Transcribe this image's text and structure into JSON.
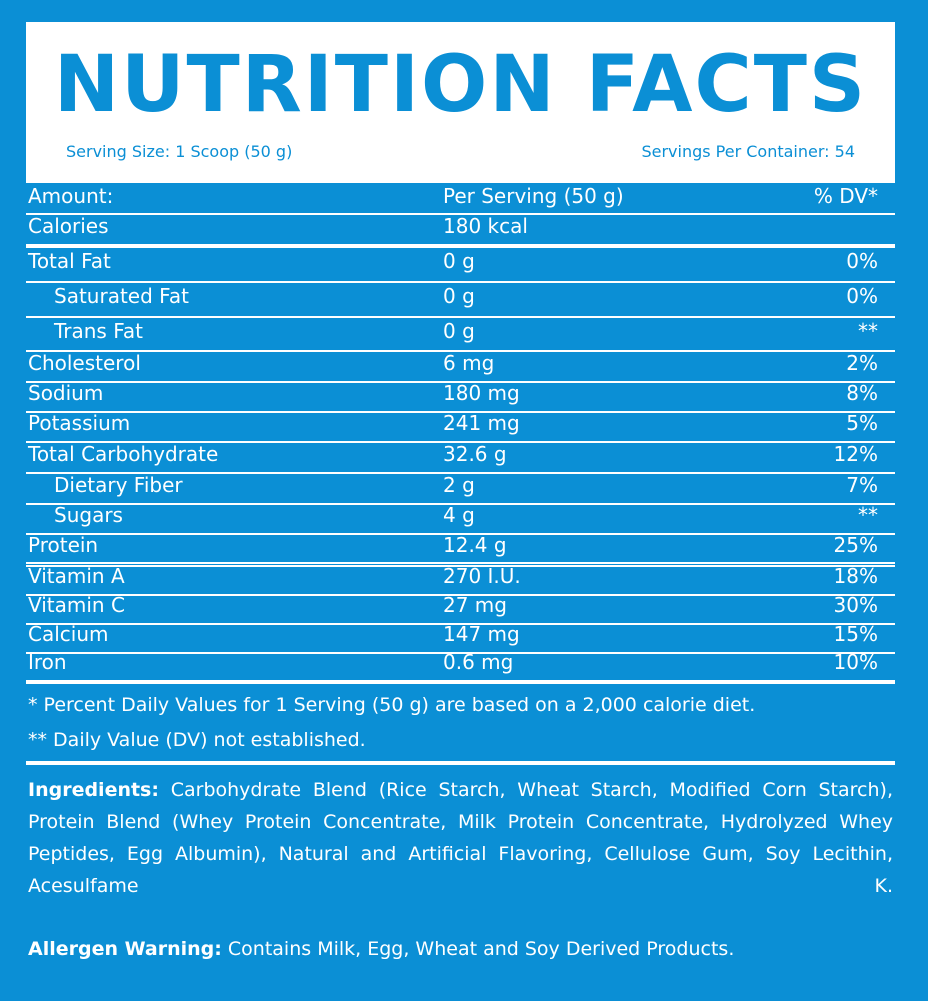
{
  "header": {
    "title": "NUTRITION FACTS",
    "serving_size": "Serving Size: 1 Scoop (50 g)",
    "servings_per_container": "Servings Per Container: 54"
  },
  "table": {
    "columns": [
      "Amount:",
      "Per Serving (50 g)",
      "% DV*"
    ],
    "rows": [
      [
        "Calories",
        "180 kcal"
      ],
      [
        "Total Fat",
        "0 g",
        "0%"
      ],
      [
        "Saturated Fat",
        "0 g",
        "0%"
      ],
      [
        "Trans Fat",
        "0 g",
        "**"
      ],
      [
        "Cholesterol",
        "6 mg",
        "2%"
      ],
      [
        "Sodium",
        "180 mg",
        "8%"
      ],
      [
        "Potassium",
        "241 mg",
        "5%"
      ],
      [
        "Total Carbohydrate",
        "32.6 g",
        "12%"
      ],
      [
        "Dietary Fiber",
        "2 g",
        "7%"
      ],
      [
        "Sugars",
        "4 g",
        "**"
      ],
      [
        "Protein",
        "12.4 g",
        "25%"
      ],
      [
        "Vitamin A",
        "270 I.U.",
        "18%"
      ],
      [
        "Vitamin C",
        "27 mg",
        "30%"
      ],
      [
        "Calcium",
        "147 mg",
        "15%"
      ],
      [
        "Iron",
        "0.6 mg",
        "10%"
      ]
    ]
  },
  "footnotes": [
    "* Percent Daily Values for 1 Serving (50 g) are based on a 2,000 calorie diet.",
    "** Daily Value (DV) not established."
  ],
  "ingredients": {
    "label": "Ingredients:",
    "text": "Carbohydrate Blend (Rice Starch, Wheat Starch, Modified Corn Starch), Protein Blend (Whey Protein Concentrate, Milk Protein Concentrate, Hydrolyzed Whey Peptides, Egg Albumin), Natural and Artificial Flavoring, Cellulose Gum, Soy Lecithin, Acesulfame K."
  },
  "allergen": {
    "label": "Allergen Warning:",
    "text": "Contains Milk, Egg, Wheat and Soy Derived Products."
  }
}
